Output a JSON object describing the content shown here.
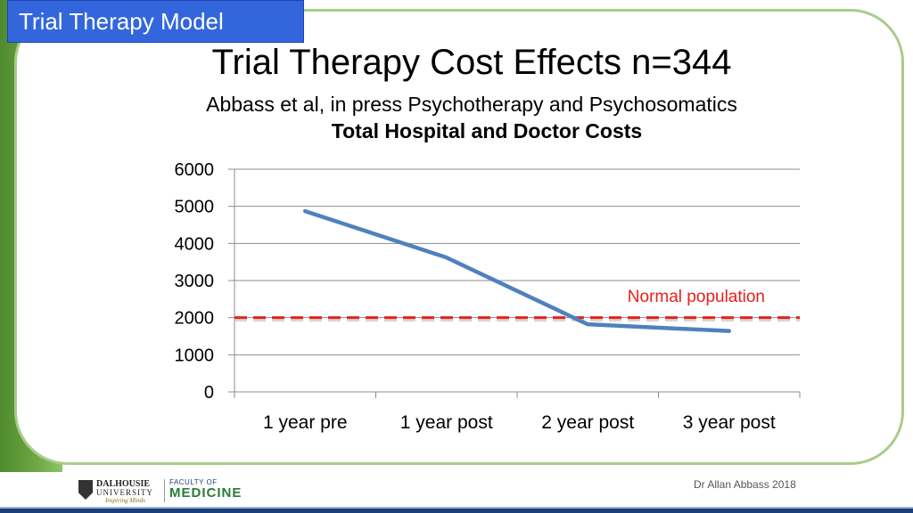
{
  "slide": {
    "tag": "Trial Therapy Model",
    "title": "Trial Therapy Cost Effects n=344",
    "subtitle": "Abbass et al, in press Psychotherapy and Psychosomatics",
    "credit": "Dr Allan Abbass 2018"
  },
  "logos": {
    "university_line1": "DALHOUSIE",
    "university_line2": "UNIVERSITY",
    "university_tagline": "Inspiring Minds",
    "faculty_line1": "FACULTY OF",
    "faculty_line2": "MEDICINE"
  },
  "colors": {
    "series": "#4f81bd",
    "reference": "#e8201a",
    "tag_bg": "#3366dd",
    "green": "#6fa844"
  },
  "chart_data": {
    "type": "line",
    "title": "Total Hospital and Doctor Costs",
    "categories": [
      "1 year pre",
      "1 year post",
      "2 year post",
      "3 year post"
    ],
    "series": [
      {
        "values": [
          4870,
          3620,
          1820,
          1640
        ]
      }
    ],
    "reference_line": {
      "label": "Normal population",
      "value": 2000,
      "style": "dashed"
    },
    "ylim": [
      0,
      6000
    ],
    "yticks": [
      0,
      1000,
      2000,
      3000,
      4000,
      5000,
      6000
    ],
    "grid": true,
    "legend": "none"
  }
}
